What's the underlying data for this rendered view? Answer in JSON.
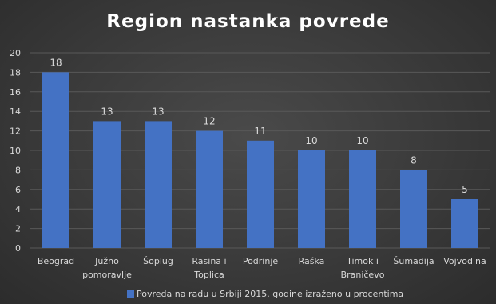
{
  "chart_data": {
    "type": "bar",
    "title": "Region nastanka povrede",
    "categories": [
      "Beograd",
      "Južno pomoravlje",
      "Šoplug",
      "Rasina i Toplica",
      "Podrinje",
      "Raška",
      "Timok i Braničevo",
      "Šumadija",
      "Vojvodina"
    ],
    "category_lines": [
      [
        "Beograd"
      ],
      [
        "Južno",
        "pomoravlje"
      ],
      [
        "Šoplug"
      ],
      [
        "Rasina i",
        "Toplica"
      ],
      [
        "Podrinje"
      ],
      [
        "Raška"
      ],
      [
        "Timok i",
        "Braničevo"
      ],
      [
        "Šumadija"
      ],
      [
        "Vojvodina"
      ]
    ],
    "series": [
      {
        "name": "Povreda na radu u Srbiji 2015. godine izraženo u procentima",
        "values": [
          18,
          13,
          13,
          12,
          11,
          10,
          10,
          8,
          5
        ]
      }
    ],
    "ylim": [
      0,
      20
    ],
    "yticks": [
      0,
      2,
      4,
      6,
      8,
      10,
      12,
      14,
      16,
      18,
      20
    ],
    "grid": true,
    "legend_position": "bottom",
    "bar_color": "#4472c4",
    "grid_color": "#595959"
  }
}
